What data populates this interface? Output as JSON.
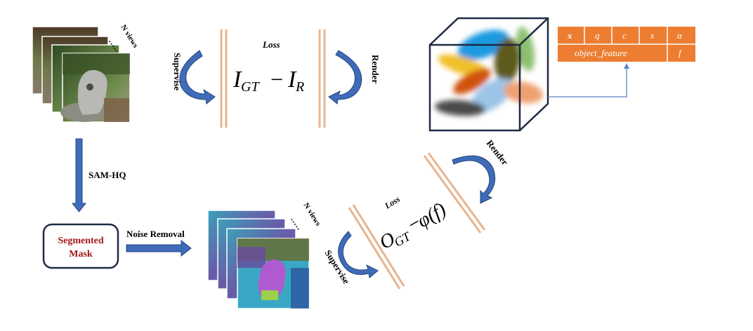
{
  "labels": {
    "n_views_top": "N views",
    "n_views_bottom": "N views",
    "dots": "·····",
    "supervise_top": "Supervise",
    "render_top": "Render",
    "loss_top": "Loss",
    "sam_hq": "SAM-HQ",
    "segmented_mask_line1": "Segmented",
    "segmented_mask_line2": "Mask",
    "noise_removal": "Noise Removal",
    "supervise_bottom": "Supervise",
    "render_bottom": "Render",
    "loss_bottom": "Loss"
  },
  "loss_top_formula": {
    "left_symbol": "I",
    "left_sub": "GT",
    "minus": "−",
    "right_symbol": "I",
    "right_sub": "R"
  },
  "loss_bottom_formula": {
    "left_symbol": "O",
    "left_sub": "GT",
    "minus": "−",
    "right": "φ(f)"
  },
  "attributes_table": {
    "row1": [
      "x",
      "q",
      "c",
      "s",
      "α"
    ],
    "row2_main": "object_feature",
    "row2_end": "f"
  },
  "colors": {
    "arrow_blue": "#3f6bb8",
    "arrow_stroke": "#24457e",
    "loss_bar": "#e8b48e",
    "table_fill": "#ed7d31",
    "cube_stroke": "#1f2a44",
    "mask_text": "#a01818",
    "connector": "#5b87c5"
  }
}
